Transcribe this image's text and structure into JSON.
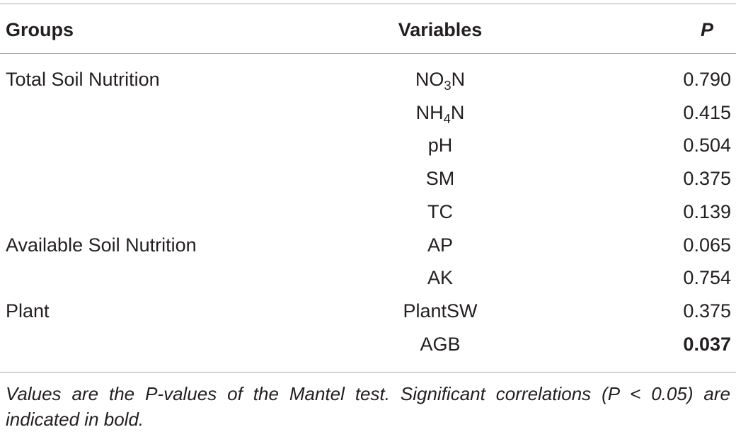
{
  "table": {
    "headers": {
      "groups": "Groups",
      "variables": "Variables",
      "p": "P"
    },
    "rows": [
      {
        "group": "Total Soil Nutrition",
        "var_base": "NO",
        "var_sub": "3",
        "var_tail": "N",
        "p": "0.790",
        "bold": false
      },
      {
        "group": "",
        "var_base": "NH",
        "var_sub": "4",
        "var_tail": "N",
        "p": "0.415",
        "bold": false
      },
      {
        "group": "",
        "var_base": "pH",
        "var_sub": "",
        "var_tail": "",
        "p": "0.504",
        "bold": false
      },
      {
        "group": "",
        "var_base": "SM",
        "var_sub": "",
        "var_tail": "",
        "p": "0.375",
        "bold": false
      },
      {
        "group": "",
        "var_base": "TC",
        "var_sub": "",
        "var_tail": "",
        "p": "0.139",
        "bold": false
      },
      {
        "group": "Available Soil Nutrition",
        "var_base": "AP",
        "var_sub": "",
        "var_tail": "",
        "p": "0.065",
        "bold": false
      },
      {
        "group": "",
        "var_base": "AK",
        "var_sub": "",
        "var_tail": "",
        "p": "0.754",
        "bold": false
      },
      {
        "group": "Plant",
        "var_base": "PlantSW",
        "var_sub": "",
        "var_tail": "",
        "p": "0.375",
        "bold": false
      },
      {
        "group": "",
        "var_base": "AGB",
        "var_sub": "",
        "var_tail": "",
        "p": "0.037",
        "bold": true
      }
    ],
    "footnote": "Values are the P-values of the Mantel test. Significant correlations (P < 0.05) are indicated in bold."
  }
}
